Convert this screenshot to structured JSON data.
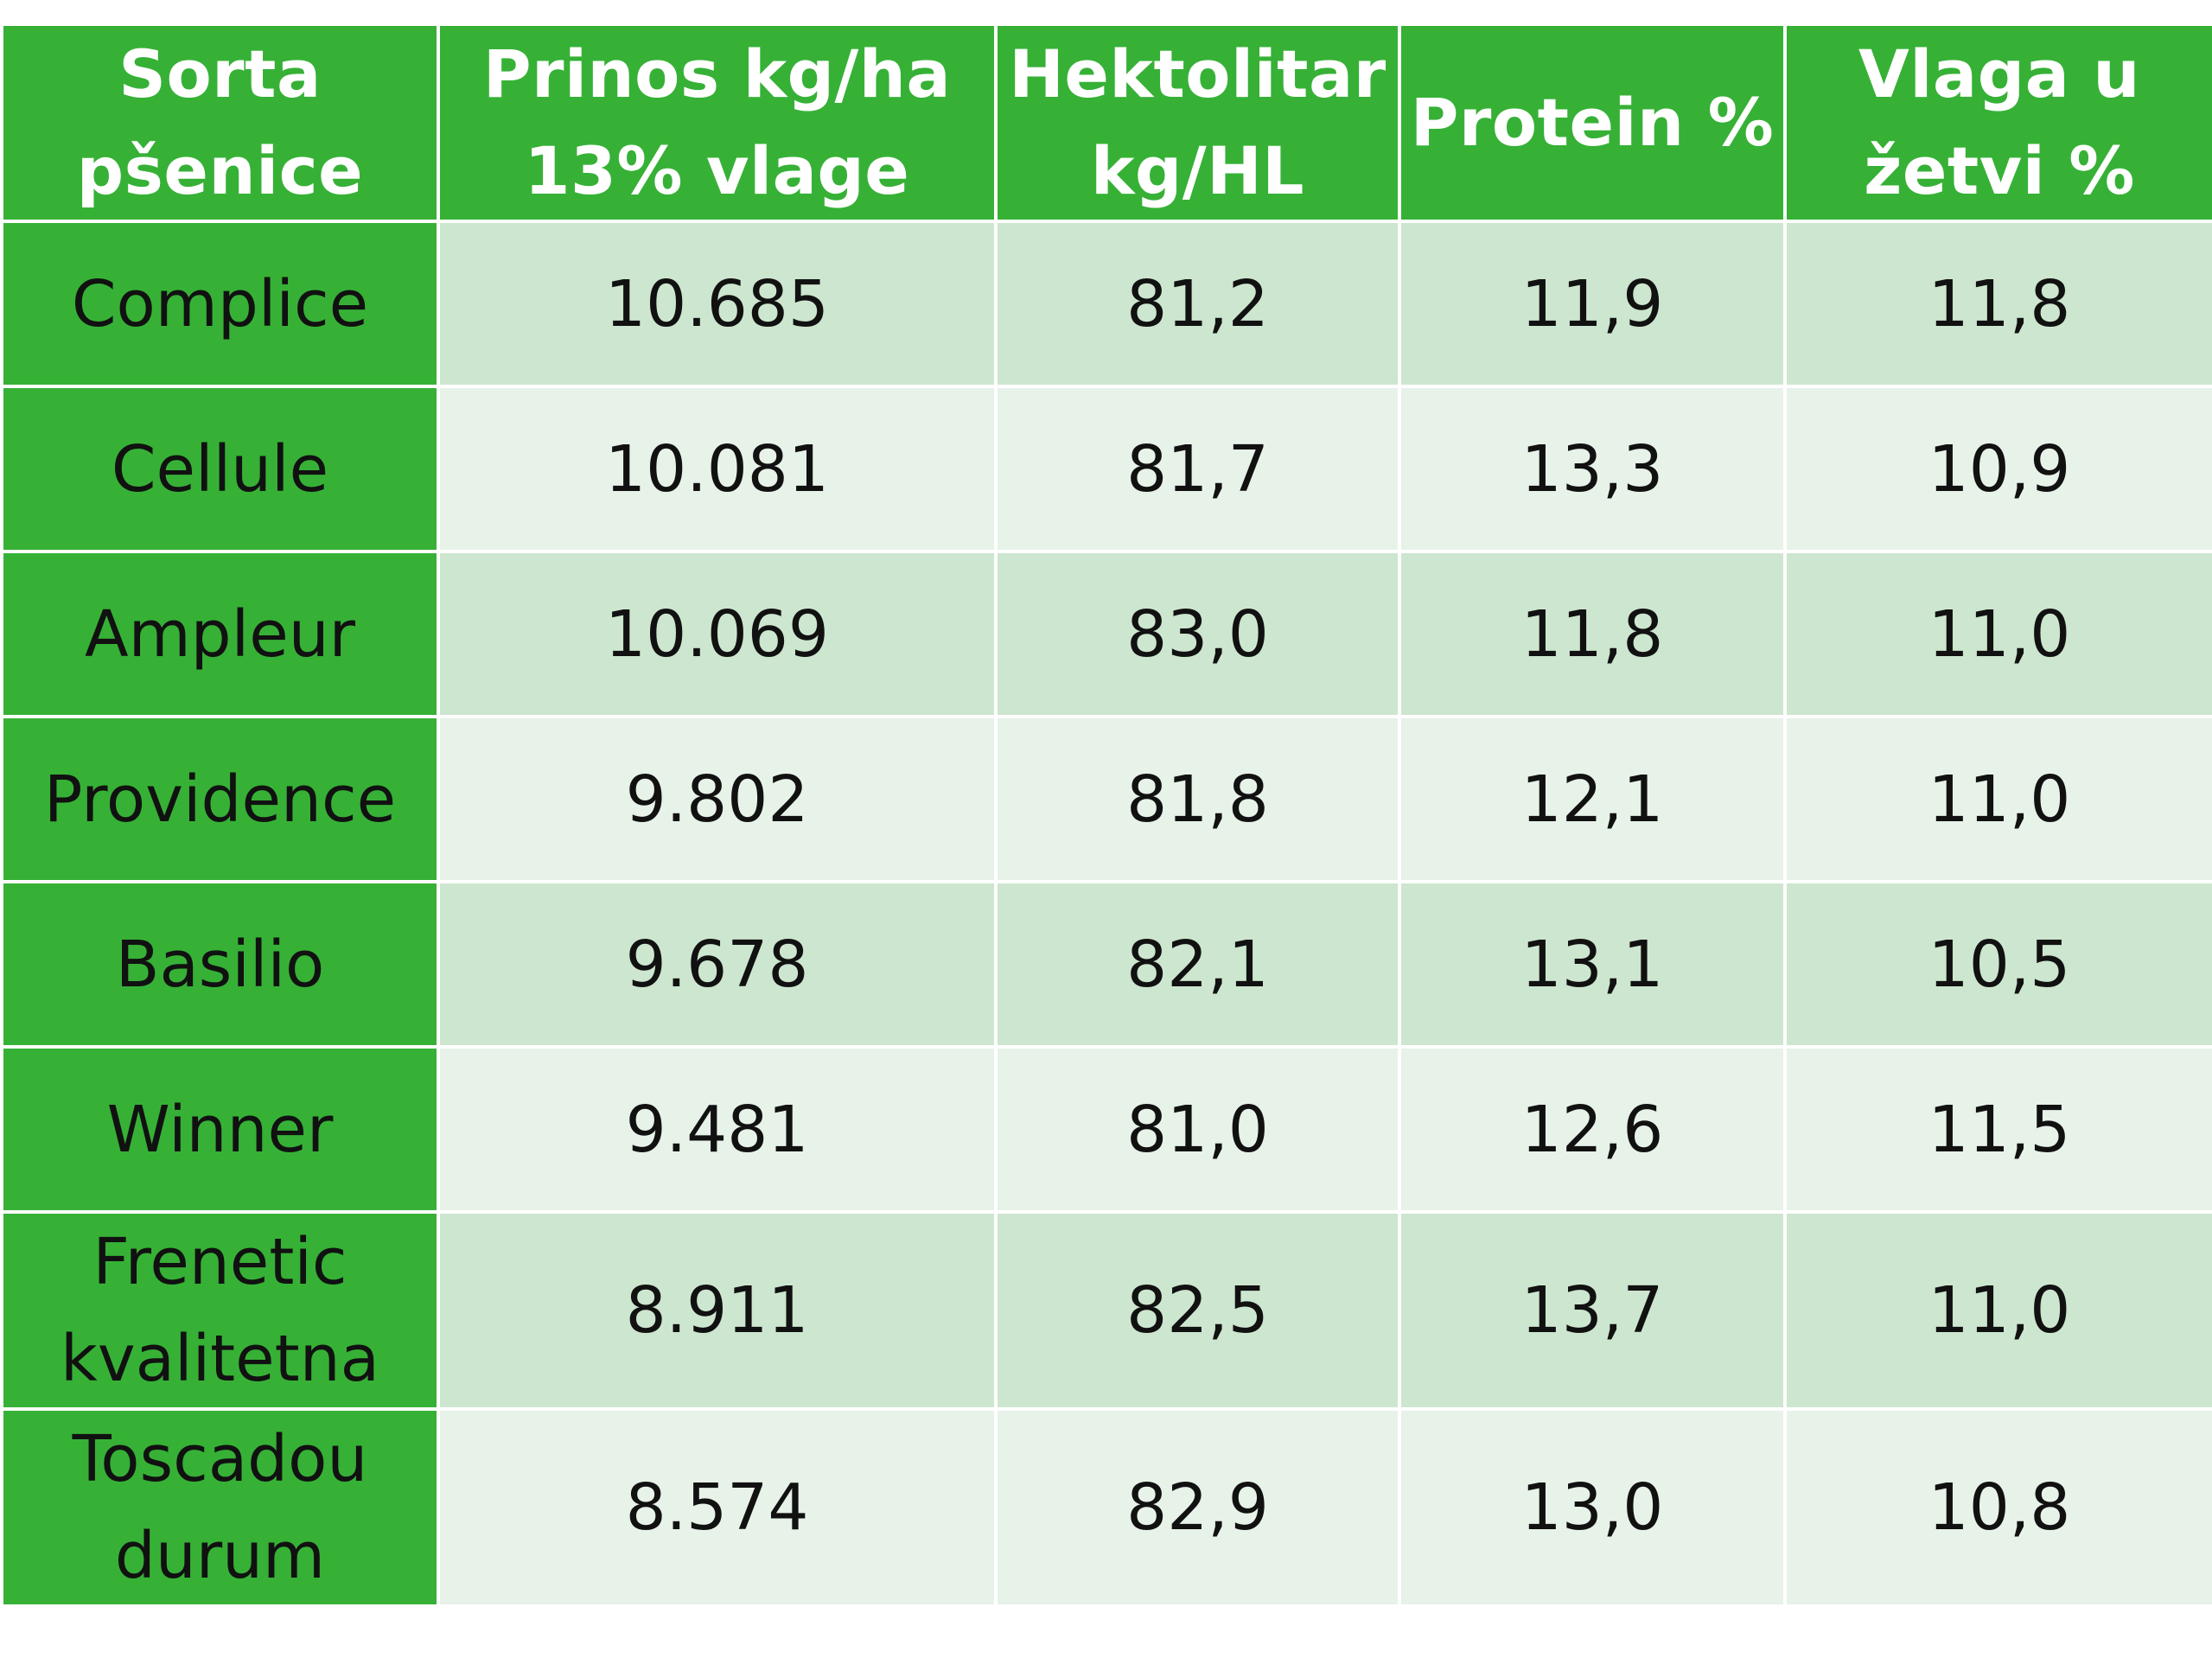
{
  "chart_data": {
    "type": "table",
    "columns": [
      "Sorta pšenice",
      "Prinos kg/ha 13% vlage",
      "Hektolitar kg/HL",
      "Protein %",
      "Vlaga u žetvi %"
    ],
    "rows": [
      [
        "Complice",
        "10.685",
        "81,2",
        "11,9",
        "11,8"
      ],
      [
        "Cellule",
        "10.081",
        "81,7",
        "13,3",
        "10,9"
      ],
      [
        "Ampleur",
        "10.069",
        "83,0",
        "11,8",
        "11,0"
      ],
      [
        "Providence",
        "9.802",
        "81,8",
        "12,1",
        "11,0"
      ],
      [
        "Basilio",
        "9.678",
        "82,1",
        "13,1",
        "10,5"
      ],
      [
        "Winner",
        "9.481",
        "81,0",
        "12,6",
        "11,5"
      ],
      [
        "Frenetic kvalitetna",
        "8.911",
        "82,5",
        "13,7",
        "11,0"
      ],
      [
        "Toscadou durum",
        "8.574",
        "82,9",
        "13,0",
        "10,8"
      ]
    ],
    "colors": {
      "header_bg": "#36b136",
      "header_text": "#ffffff",
      "variety_bg": "#36b136",
      "row_odd_bg": "#cde6cf",
      "row_even_bg": "#e7f2e8",
      "cell_text": "#111111",
      "border": "#ffffff"
    }
  }
}
